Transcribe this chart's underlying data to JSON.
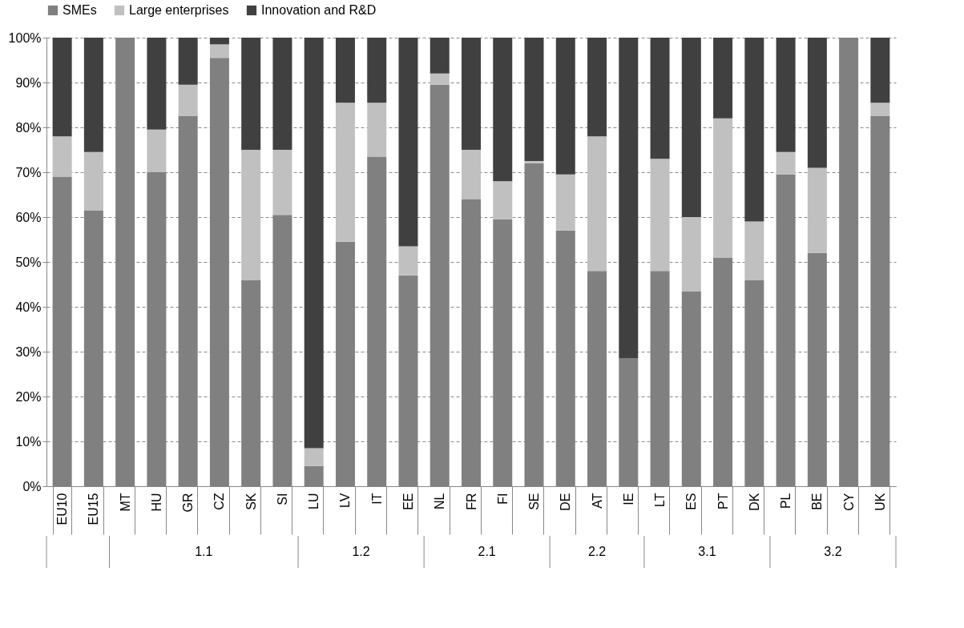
{
  "chart_data": {
    "type": "bar",
    "stacked": true,
    "categories": [
      "EU10",
      "EU15",
      "MT",
      "HU",
      "GR",
      "CZ",
      "SK",
      "SI",
      "LU",
      "LV",
      "IT",
      "EE",
      "NL",
      "FR",
      "FI",
      "SE",
      "DE",
      "AT",
      "IE",
      "LT",
      "ES",
      "PT",
      "DK",
      "PL",
      "BE",
      "CY",
      "UK"
    ],
    "series": [
      {
        "name": "SMEs",
        "color": "#808080",
        "values": [
          69,
          61.5,
          100,
          70,
          82.5,
          95.5,
          46,
          60.5,
          4.5,
          54.5,
          73.5,
          47,
          89.5,
          64,
          59.5,
          72,
          57,
          48,
          28.5,
          48,
          43.5,
          51,
          46,
          69.5,
          52,
          100,
          82.5
        ]
      },
      {
        "name": "Large enterprises",
        "color": "#c0c0c0",
        "values": [
          9,
          13,
          0,
          9.5,
          7,
          3,
          29,
          14.5,
          4,
          31,
          12,
          6.5,
          2.5,
          11,
          8.5,
          0.5,
          12.5,
          30,
          0,
          25,
          16.5,
          31,
          13,
          5,
          19,
          0,
          3
        ]
      },
      {
        "name": "Innovation and R&D",
        "color": "#404040",
        "values": [
          22,
          25.5,
          0,
          20.5,
          10.5,
          1.5,
          25,
          25,
          91.5,
          14.5,
          14.5,
          46.5,
          8,
          25,
          32,
          27.5,
          30.5,
          22,
          71.5,
          27,
          40,
          18,
          41,
          25.5,
          29,
          0,
          14.5
        ]
      }
    ],
    "ylim": [
      0,
      100
    ],
    "yticks": [
      {
        "value": 0,
        "label": "0%"
      },
      {
        "value": 10,
        "label": "10%"
      },
      {
        "value": 20,
        "label": "20%"
      },
      {
        "value": 30,
        "label": "30%"
      },
      {
        "value": 40,
        "label": "40%"
      },
      {
        "value": 50,
        "label": "50%"
      },
      {
        "value": 60,
        "label": "60%"
      },
      {
        "value": 70,
        "label": "70%"
      },
      {
        "value": 80,
        "label": "80%"
      },
      {
        "value": 90,
        "label": "90%"
      },
      {
        "value": 100,
        "label": "100%"
      }
    ],
    "grid": "y",
    "legend": "top",
    "annotations": [
      "1.1",
      "1.2",
      "2.1",
      "2.2",
      "3.1",
      "3.2"
    ]
  }
}
